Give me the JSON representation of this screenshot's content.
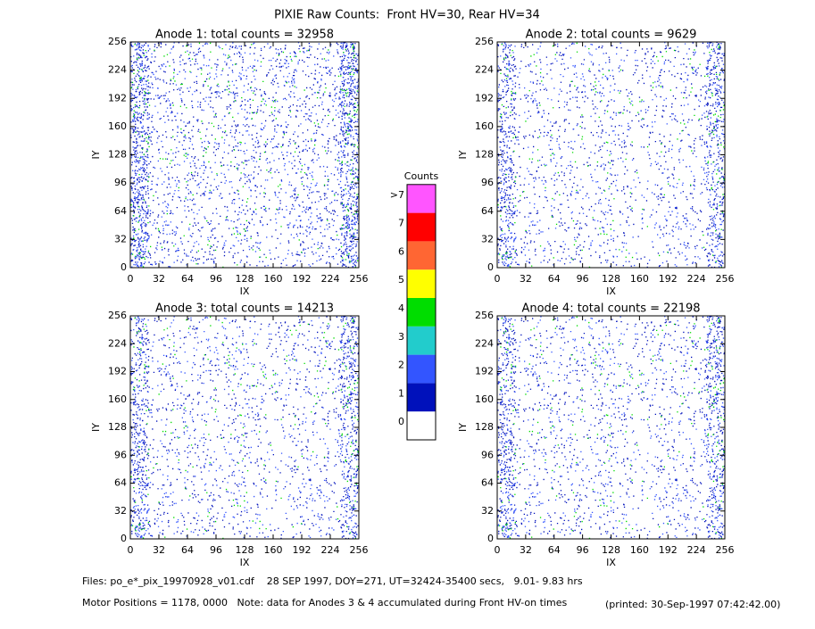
{
  "title": "PIXIE Raw Counts:  Front HV=30, Rear HV=34",
  "chart_data": [
    {
      "type": "heatmap",
      "title": "Anode 1: total counts = 32958",
      "xlabel": "IX",
      "ylabel": "IY",
      "xlim": [
        0,
        256
      ],
      "ylim": [
        0,
        256
      ],
      "xticks": [
        0,
        32,
        64,
        96,
        128,
        160,
        192,
        224,
        256
      ],
      "yticks": [
        0,
        32,
        64,
        96,
        128,
        160,
        192,
        224,
        256
      ]
    },
    {
      "type": "heatmap",
      "title": "Anode 2: total counts = 9629",
      "xlabel": "IX",
      "ylabel": "IY",
      "xlim": [
        0,
        256
      ],
      "ylim": [
        0,
        256
      ],
      "xticks": [
        0,
        32,
        64,
        96,
        128,
        160,
        192,
        224,
        256
      ],
      "yticks": [
        0,
        32,
        64,
        96,
        128,
        160,
        192,
        224,
        256
      ]
    },
    {
      "type": "heatmap",
      "title": "Anode 3: total counts = 14213",
      "xlabel": "IX",
      "ylabel": "IY",
      "xlim": [
        0,
        256
      ],
      "ylim": [
        0,
        256
      ],
      "xticks": [
        0,
        32,
        64,
        96,
        128,
        160,
        192,
        224,
        256
      ],
      "yticks": [
        0,
        32,
        64,
        96,
        128,
        160,
        192,
        224,
        256
      ]
    },
    {
      "type": "heatmap",
      "title": "Anode 4: total counts = 22198",
      "xlabel": "IX",
      "ylabel": "IY",
      "xlim": [
        0,
        256
      ],
      "ylim": [
        0,
        256
      ],
      "xticks": [
        0,
        32,
        64,
        96,
        128,
        160,
        192,
        224,
        256
      ],
      "yticks": [
        0,
        32,
        64,
        96,
        128,
        160,
        192,
        224,
        256
      ]
    }
  ],
  "colorbar": {
    "title": "Counts",
    "labels": [
      "0",
      "1",
      "2",
      "3",
      "4",
      "5",
      "6",
      "7",
      ">7"
    ],
    "colors": [
      "#ffffff",
      "#0011bb",
      "#3355ff",
      "#22cccc",
      "#00dd00",
      "#ffff00",
      "#ff6633",
      "#ff0000",
      "#ff55ff"
    ]
  },
  "footer": [
    "Files: po_e*_pix_19970928_v01.cdf    28 SEP 1997, DOY=271, UT=32424-35400 secs,   9.01- 9.83 hrs",
    "Motor Positions = 1178, 0000   Note: data for Anodes 3 & 4 accumulated during Front HV-on times",
    "(printed: 30-Sep-1997 07:42:42.00)"
  ]
}
